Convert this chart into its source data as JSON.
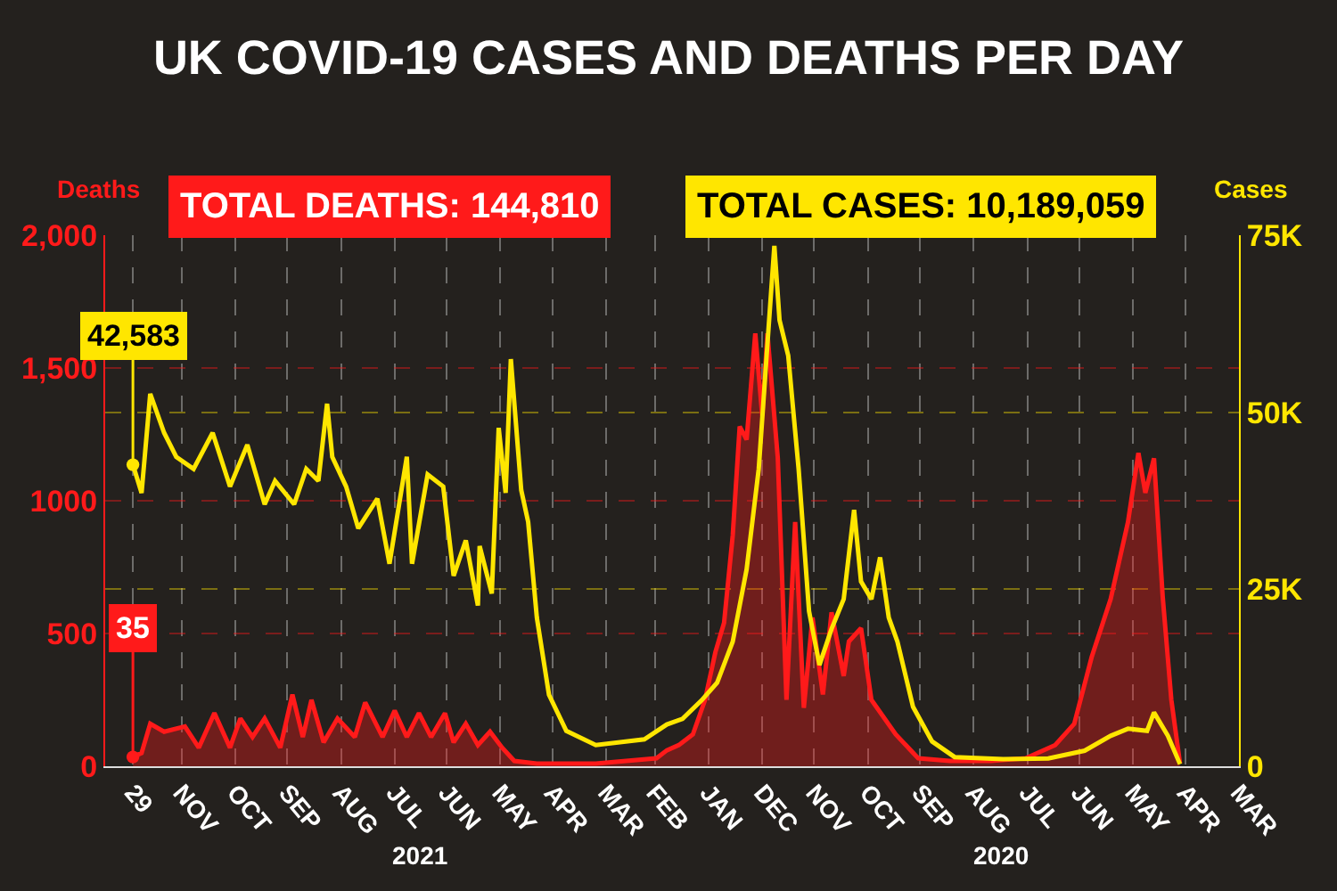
{
  "chart_data": {
    "type": "line",
    "title": "UK COVID-19 CASES AND DEATHS PER DAY",
    "ylabel": "Deaths",
    "y2label": "Cases",
    "annotations": [
      "TOTAL DEATHS: 144,810",
      "TOTAL CASES: 10,189,059",
      "2021",
      "2020"
    ],
    "xlim": [
      "2021-12-15",
      "2020-03-01"
    ],
    "xticks": [
      {
        "value": "2021-11-29",
        "label": "29"
      },
      {
        "value": "2021-11-01",
        "label": "NOV"
      },
      {
        "value": "2021-10-01",
        "label": "OCT"
      },
      {
        "value": "2021-09-01",
        "label": "SEP"
      },
      {
        "value": "2021-08-01",
        "label": "AUG"
      },
      {
        "value": "2021-07-01",
        "label": "JUL"
      },
      {
        "value": "2021-06-01",
        "label": "JUN"
      },
      {
        "value": "2021-05-01",
        "label": "MAY"
      },
      {
        "value": "2021-04-01",
        "label": "APR"
      },
      {
        "value": "2021-03-01",
        "label": "MAR"
      },
      {
        "value": "2021-02-01",
        "label": "FEB"
      },
      {
        "value": "2021-01-01",
        "label": "JAN"
      },
      {
        "value": "2020-12-01",
        "label": "DEC"
      },
      {
        "value": "2020-11-01",
        "label": "NOV"
      },
      {
        "value": "2020-10-01",
        "label": "OCT"
      },
      {
        "value": "2020-09-01",
        "label": "SEP"
      },
      {
        "value": "2020-08-01",
        "label": "AUG"
      },
      {
        "value": "2020-07-01",
        "label": "JUL"
      },
      {
        "value": "2020-06-01",
        "label": "JUN"
      },
      {
        "value": "2020-05-01",
        "label": "MAY"
      },
      {
        "value": "2020-04-01",
        "label": "APR"
      },
      {
        "value": "2020-03-01",
        "label": "MAR"
      }
    ],
    "ylim": [
      0,
      2000
    ],
    "yticks": [
      0,
      500,
      1000,
      {
        "value": 1500,
        "label": "1,500"
      },
      {
        "value": 2000,
        "label": "2,000"
      }
    ],
    "y2lim": [
      0,
      75000
    ],
    "y2ticks": [
      0,
      {
        "value": 25000,
        "label": "25K"
      },
      {
        "value": 50000,
        "label": "50K"
      },
      {
        "value": 75000,
        "label": "75K"
      }
    ],
    "grid": true,
    "series": [
      {
        "type": "area",
        "color": "#ff1a1a",
        "x": [
          "2020-04-04",
          "2020-04-09",
          "2020-04-14",
          "2020-04-19",
          "2020-04-24",
          "2020-04-28",
          "2020-05-04",
          "2020-05-14",
          "2020-05-25",
          "2020-06-04",
          "2020-06-15",
          "2020-07-02",
          "2020-07-22",
          "2020-08-15",
          "2020-09-02",
          "2020-09-15",
          "2020-09-29",
          "2020-10-05",
          "2020-10-12",
          "2020-10-15",
          "2020-10-22",
          "2020-10-27",
          "2020-11-02",
          "2020-11-07",
          "2020-11-12",
          "2020-11-17",
          "2020-11-22",
          "2020-11-28",
          "2020-12-01",
          "2020-12-05",
          "2020-12-10",
          "2020-12-14",
          "2020-12-18",
          "2020-12-23",
          "2020-12-28",
          "2021-01-03",
          "2021-01-10",
          "2021-01-18",
          "2021-01-25",
          "2021-01-31",
          "2021-03-07",
          "2021-04-10",
          "2021-04-23",
          "2021-04-30",
          "2021-05-07",
          "2021-05-14",
          "2021-05-21",
          "2021-05-28",
          "2021-06-02",
          "2021-06-10",
          "2021-06-17",
          "2021-06-24",
          "2021-07-01",
          "2021-07-08",
          "2021-07-18",
          "2021-07-24",
          "2021-08-03",
          "2021-08-11",
          "2021-08-18",
          "2021-08-23",
          "2021-08-29",
          "2021-09-05",
          "2021-09-14",
          "2021-09-21",
          "2021-09-28",
          "2021-10-04",
          "2021-10-13",
          "2021-10-22",
          "2021-10-30",
          "2021-11-11",
          "2021-11-19",
          "2021-11-24",
          "2021-11-29"
        ],
        "values": [
          10,
          250,
          640,
          1160,
          1030,
          1180,
          920,
          630,
          410,
          160,
          80,
          30,
          20,
          20,
          30,
          120,
          250,
          520,
          470,
          340,
          580,
          270,
          560,
          220,
          920,
          250,
          1160,
          1630,
          1320,
          1630,
          1230,
          1280,
          870,
          540,
          430,
          250,
          120,
          80,
          60,
          30,
          10,
          10,
          20,
          70,
          130,
          80,
          160,
          90,
          200,
          110,
          200,
          110,
          210,
          110,
          240,
          110,
          180,
          90,
          250,
          110,
          270,
          70,
          180,
          110,
          180,
          70,
          200,
          70,
          150,
          130,
          160,
          50,
          35
        ],
        "value_labels": [
          null,
          null,
          null,
          null,
          null,
          null,
          null,
          null,
          null,
          null,
          null,
          null,
          null,
          null,
          null,
          null,
          null,
          null,
          null,
          null,
          null,
          null,
          null,
          null,
          null,
          null,
          null,
          null,
          null,
          null,
          null,
          null,
          null,
          null,
          null,
          null,
          null,
          null,
          null,
          null,
          null,
          null,
          null,
          null,
          null,
          null,
          null,
          null,
          null,
          null,
          null,
          null,
          null,
          null,
          null,
          null,
          null,
          null,
          null,
          null,
          null,
          null,
          null,
          null,
          null,
          null,
          null,
          null,
          null,
          null,
          null,
          null,
          "35"
        ]
      },
      {
        "axis": "y2",
        "color": "#ffe600",
        "x": [
          "2020-04-04",
          "2020-04-11",
          "2020-04-19",
          "2020-04-23",
          "2020-05-04",
          "2020-05-14",
          "2020-05-29",
          "2020-06-19",
          "2020-07-15",
          "2020-08-12",
          "2020-08-25",
          "2020-09-05",
          "2020-09-14",
          "2020-09-19",
          "2020-09-24",
          "2020-09-29",
          "2020-10-05",
          "2020-10-09",
          "2020-10-15",
          "2020-10-22",
          "2020-10-29",
          "2020-11-04",
          "2020-11-10",
          "2020-11-16",
          "2020-11-21",
          "2020-11-24",
          "2020-11-28",
          "2020-12-03",
          "2020-12-10",
          "2020-12-18",
          "2020-12-27",
          "2021-01-05",
          "2021-01-16",
          "2021-01-25",
          "2021-02-07",
          "2021-03-07",
          "2021-03-24",
          "2021-04-03",
          "2021-04-10",
          "2021-04-15",
          "2021-04-19",
          "2021-04-25",
          "2021-04-28",
          "2021-05-02",
          "2021-05-06",
          "2021-05-13",
          "2021-05-14",
          "2021-05-21",
          "2021-05-28",
          "2021-06-03",
          "2021-06-12",
          "2021-06-21",
          "2021-06-24",
          "2021-07-04",
          "2021-07-11",
          "2021-07-22",
          "2021-07-29",
          "2021-08-06",
          "2021-08-09",
          "2021-08-14",
          "2021-08-21",
          "2021-08-28",
          "2021-09-08",
          "2021-09-14",
          "2021-09-24",
          "2021-10-04",
          "2021-10-14",
          "2021-10-25",
          "2021-11-04",
          "2021-11-11",
          "2021-11-19",
          "2021-11-24",
          "2021-11-29"
        ],
        "values": [
          300,
          4300,
          7600,
          5000,
          5300,
          4300,
          2200,
          1100,
          1000,
          1300,
          3500,
          8400,
          17600,
          21000,
          29500,
          23600,
          26100,
          36200,
          23600,
          19400,
          14300,
          21900,
          42000,
          58000,
          63000,
          73500,
          59600,
          42000,
          27800,
          17600,
          11800,
          9300,
          6700,
          5900,
          3800,
          3000,
          5000,
          10100,
          21000,
          34500,
          39000,
          57500,
          38600,
          47800,
          24400,
          31100,
          22700,
          31900,
          26900,
          39500,
          41200,
          28600,
          43700,
          28600,
          37800,
          33600,
          39500,
          43700,
          51200,
          40300,
          42000,
          37000,
          40300,
          37000,
          45400,
          39500,
          47100,
          42000,
          43700,
          47100,
          52600,
          38600,
          42583
        ],
        "value_labels": [
          null,
          null,
          null,
          null,
          null,
          null,
          null,
          null,
          null,
          null,
          null,
          null,
          null,
          null,
          null,
          null,
          null,
          null,
          null,
          null,
          null,
          null,
          null,
          null,
          null,
          null,
          null,
          null,
          null,
          null,
          null,
          null,
          null,
          null,
          null,
          null,
          null,
          null,
          null,
          null,
          null,
          null,
          null,
          null,
          null,
          null,
          null,
          null,
          null,
          null,
          null,
          null,
          null,
          null,
          null,
          null,
          null,
          null,
          null,
          null,
          null,
          null,
          null,
          null,
          null,
          null,
          null,
          null,
          null,
          null,
          null,
          null,
          "42,583"
        ]
      }
    ]
  }
}
